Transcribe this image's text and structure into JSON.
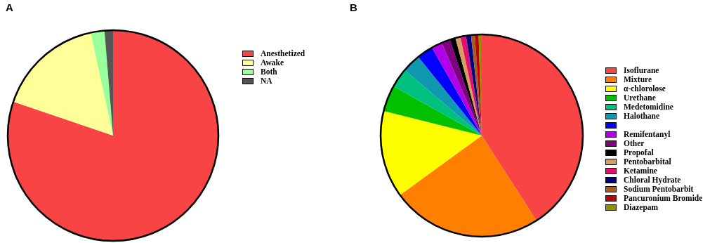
{
  "chart_data": [
    {
      "type": "pie",
      "title": "A",
      "legend": "right",
      "categories": [
        "Anesthetized",
        "Awake",
        "Both",
        "NA"
      ],
      "values": [
        80.2,
        16.4,
        2.1,
        1.3
      ],
      "colors": [
        "#f84444",
        "#ffff99",
        "#99ff99",
        "#555555"
      ]
    },
    {
      "type": "pie",
      "title": "B",
      "legend": "right",
      "categories": [
        "Isoflurane",
        "Mixture",
        "α-chlorolose",
        "Urethane",
        "Medetomidine",
        "Halothane",
        null,
        "Remifentanyl",
        "Other",
        "Propofal",
        "Pentobarbital",
        "Ketamine",
        "Chloral Hydrate",
        "Sodium Pentobarbit",
        "Pancuronium Bromide",
        "Diazepam"
      ],
      "values": [
        40.9,
        24.1,
        13.9,
        4.2,
        3.1,
        3.0,
        2.6,
        1.7,
        1.4,
        0.9,
        0.8,
        0.9,
        0.8,
        0.6,
        0.6,
        0.5
      ],
      "colors": [
        "#f84444",
        "#ff8000",
        "#ffff00",
        "#00c000",
        "#00c080",
        "#1098b0",
        "#0000ff",
        "#b000e8",
        "#800080",
        "#000000",
        "#d8a060",
        "#e01070",
        "#000080",
        "#a06020",
        "#c00000",
        "#909000"
      ]
    }
  ]
}
